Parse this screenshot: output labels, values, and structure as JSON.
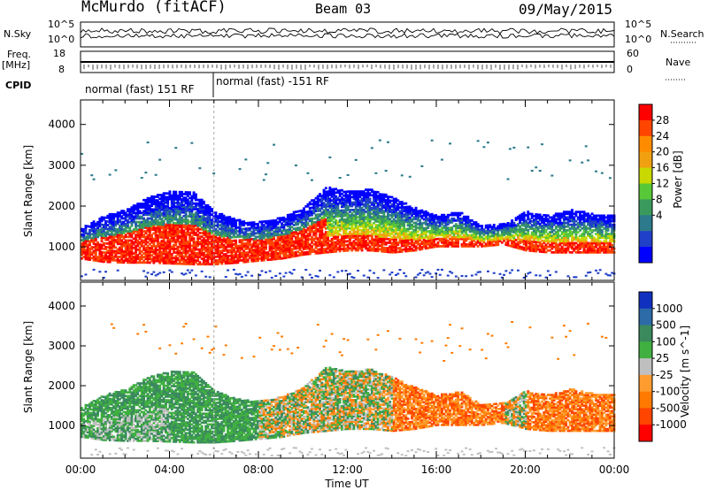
{
  "header": {
    "station": "McMurdo (fitACF)",
    "beam": "Beam 03",
    "date": "09/May/2015"
  },
  "strips": {
    "nsky_label": "N.Sky",
    "nsky_ticks": [
      "10^5",
      "10^0"
    ],
    "nsearch_label": "N.Search",
    "nsearch_ticks": [
      "10^5",
      "10^0"
    ],
    "freq_label": "Freq.",
    "freq_unit": "[MHz]",
    "freq_ticks": [
      "18",
      "8"
    ],
    "nave_label": "Nave",
    "nave_ticks": [
      "60",
      "0"
    ],
    "cpid_label": "CPID",
    "cpid_segments": [
      "normal (fast) 151 RF",
      "normal (fast) -151 RF"
    ]
  },
  "chart_data": [
    {
      "type": "heatmap",
      "name": "power-panel",
      "xlabel": "Time UT",
      "ylabel": "Slant Range [km]",
      "x_ticks": [
        "00:00",
        "04:00",
        "08:00",
        "12:00",
        "16:00",
        "20:00",
        "00:00"
      ],
      "xlim_hours": [
        0,
        24
      ],
      "y_ticks": [
        1000,
        2000,
        3000,
        4000
      ],
      "ylim_km": [
        180,
        4600
      ],
      "colorbar_label": "Power [dB]",
      "colorbar_ticks": [
        "28",
        "24",
        "20",
        "16",
        "12",
        "8",
        "4"
      ],
      "colorbar_colors": [
        "#ff0000",
        "#ff4500",
        "#ff8c00",
        "#f0a010",
        "#c8d800",
        "#58c838",
        "#3a9a5e",
        "#2c7a8c",
        "#2040c8",
        "#0000ff"
      ],
      "cutoff_hour": 6,
      "scatter_band": [
        {
          "t": 0,
          "low": 700,
          "high": 1450
        },
        {
          "t": 1,
          "low": 620,
          "high": 1750
        },
        {
          "t": 2,
          "low": 600,
          "high": 1900
        },
        {
          "t": 3,
          "low": 600,
          "high": 2200
        },
        {
          "t": 4,
          "low": 580,
          "high": 2350
        },
        {
          "t": 5,
          "low": 560,
          "high": 2350
        },
        {
          "t": 6,
          "low": 560,
          "high": 1850
        },
        {
          "t": 7,
          "low": 600,
          "high": 1650
        },
        {
          "t": 8,
          "low": 650,
          "high": 1600
        },
        {
          "t": 9,
          "low": 700,
          "high": 1700
        },
        {
          "t": 10,
          "low": 800,
          "high": 1950
        },
        {
          "t": 11,
          "low": 850,
          "high": 2450
        },
        {
          "t": 12,
          "low": 900,
          "high": 2350
        },
        {
          "t": 13,
          "low": 900,
          "high": 2400
        },
        {
          "t": 14,
          "low": 850,
          "high": 2200
        },
        {
          "t": 15,
          "low": 900,
          "high": 1950
        },
        {
          "t": 16,
          "low": 1000,
          "high": 1750
        },
        {
          "t": 17,
          "low": 1000,
          "high": 1850
        },
        {
          "t": 18,
          "low": 1000,
          "high": 1500
        },
        {
          "t": 19,
          "low": 1050,
          "high": 1550
        },
        {
          "t": 20,
          "low": 900,
          "high": 1850
        },
        {
          "t": 21,
          "low": 850,
          "high": 1750
        },
        {
          "t": 22,
          "low": 850,
          "high": 1900
        },
        {
          "t": 23,
          "low": 850,
          "high": 1800
        },
        {
          "t": 24,
          "low": 850,
          "high": 1750
        }
      ]
    },
    {
      "type": "heatmap",
      "name": "velocity-panel",
      "xlabel": "Time UT",
      "ylabel": "Slant Range [km]",
      "x_ticks": [
        "00:00",
        "04:00",
        "08:00",
        "12:00",
        "16:00",
        "20:00",
        "00:00"
      ],
      "xlim_hours": [
        0,
        24
      ],
      "y_ticks": [
        1000,
        2000,
        3000,
        4000
      ],
      "ylim_km": [
        180,
        4600
      ],
      "colorbar_label": "Velocity [m s^-1]",
      "colorbar_ticks": [
        "1000",
        "500",
        "100",
        "25",
        "-25",
        "-100",
        "-500",
        "-1000"
      ],
      "colorbar_colors": [
        "#1030c0",
        "#2c6aa8",
        "#3a8a5e",
        "#40b040",
        "#bfbfbf",
        "#ff9c30",
        "#ff7a00",
        "#ff4500",
        "#ff0000"
      ]
    }
  ]
}
